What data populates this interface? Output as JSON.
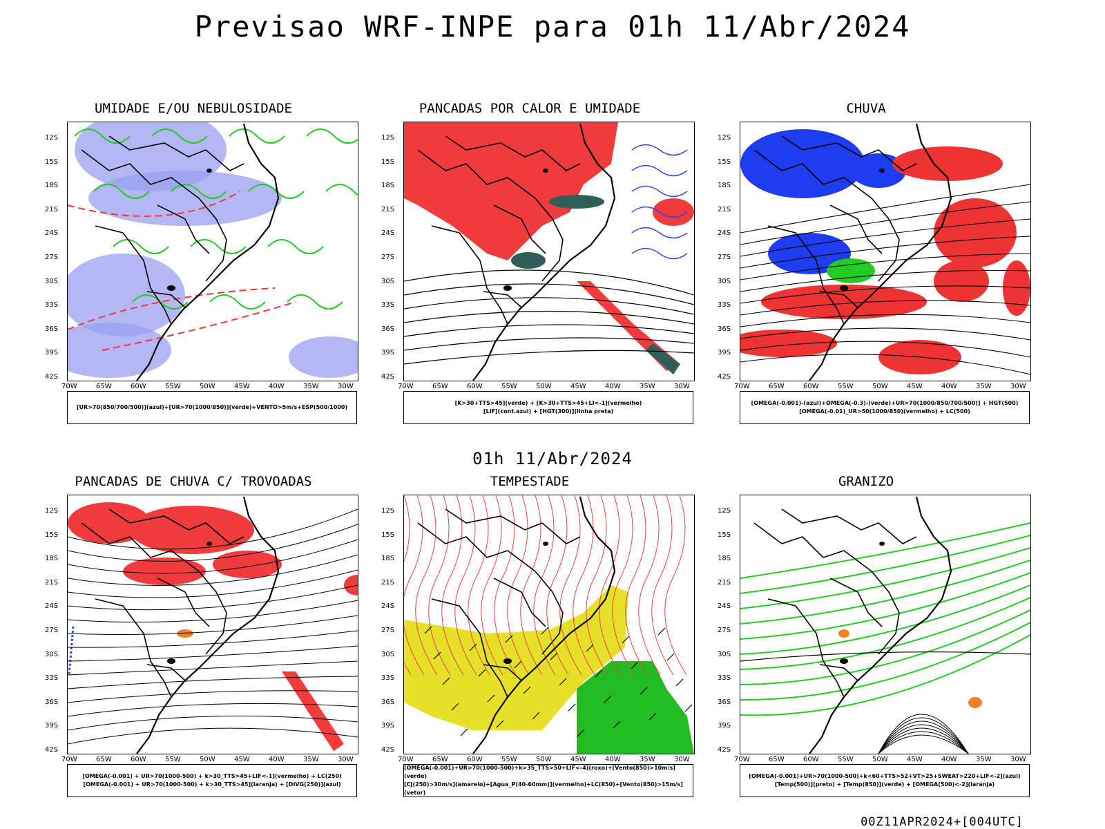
{
  "header": {
    "title": "Previsao WRF-INPE  para 01h 11/Abr/2024",
    "mid_title": "01h 11/Abr/2024",
    "footer": "00Z11APR2024+[004UTC]"
  },
  "axes": {
    "lat_labels": [
      "12S",
      "15S",
      "18S",
      "21S",
      "24S",
      "27S",
      "30S",
      "33S",
      "36S",
      "39S",
      "42S"
    ],
    "lon_labels": [
      "70W",
      "65W",
      "60W",
      "55W",
      "50W",
      "45W",
      "40W",
      "35W",
      "30W"
    ]
  },
  "panels": [
    {
      "title": "UMIDADE E/OU NEBULOSIDADE",
      "legend": [
        "[UR>70(850/700/500)](azul)+[UR>70(1000/850)](verde)+VENTO>5m/s+ESP(500/1000)"
      ],
      "colors": {
        "fill": "#9aa0f0",
        "line": "#22cc22",
        "dash": "#ff3333"
      }
    },
    {
      "title": "PANCADAS POR CALOR E UMIDADE",
      "legend": [
        "[K>30+TTS>45](verde) + [K>30+TTS>45+LI<-1](vermelho)",
        "[LIF](cont.azul) + [HGT(300)](linha preta)"
      ],
      "colors": {
        "fill": "#f03c3c",
        "line": "#3344ee",
        "dark": "#2f5f5a"
      }
    },
    {
      "title": "CHUVA",
      "legend": [
        "[OMEGA(-0.001)-(azul)+OMEGA(-0.3)-(verde)+UR>70(1000/850/700/500)] + HGT(500)",
        "[OMEGA(-0.01)_UR>50(1000/850)(vermelho) + LC(500)"
      ],
      "colors": {
        "fill": "#ee3333",
        "blue": "#1e3cf0",
        "green": "#22cc22"
      }
    },
    {
      "title": "PANCADAS DE CHUVA C/ TROVOADAS",
      "legend": [
        "[OMEGA(-0.001) + UR>70(1000-500) + k>30_TTS>45+LIF<-1](vermelho) + LC(250)",
        "[OMEGA(-0.001) + UR>70(1000-500) + k>30_TTS>45](laranja) + [DIVG(250)](azul)"
      ],
      "colors": {
        "fill": "#f03c3c",
        "orange": "#f08020",
        "blue": "#2244ee"
      }
    },
    {
      "title": "TEMPESTADE",
      "legend": [
        "[OMEGA(-0.001)+UR>70(1000-500)+k>35_TTS>50+LIF<-4](roxo)+[Vento(850)>10m/s](verde)",
        "[CJ(250)>30m/s](amarelo)+[Agua_P(40-60mm)](vermelho)+LC(850)+[Vento(850)>15m/s](vetor)"
      ],
      "colors": {
        "yellow": "#e6e02a",
        "green": "#22bb22",
        "red": "#f04040"
      }
    },
    {
      "title": "GRANIZO",
      "legend": [
        "[OMEGA(-0.001)+UR>70(1000-500)+k<60+TTS>52+VT>25+SWEAT>220+LIF<-2](azul)",
        "[Temp(500)](preto) + [Temp(850)](verde) + [OMEGA(500)<-2](laranja)"
      ],
      "colors": {
        "green": "#22cc22",
        "orange": "#f08020"
      }
    }
  ]
}
